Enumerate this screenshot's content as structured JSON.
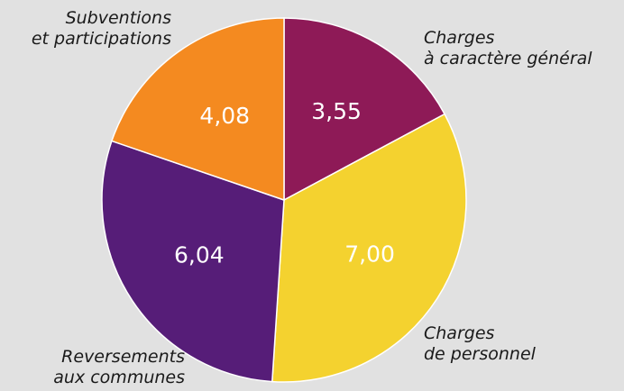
{
  "chart_data": {
    "type": "pie",
    "categories": [
      "Charges\nà caractère général",
      "Charges\nde personnel",
      "Reversements\naux communes",
      "Subventions\net participations"
    ],
    "values": [
      3.55,
      7.0,
      6.04,
      4.08
    ],
    "value_labels": [
      "3,55",
      "7,00",
      "6,04",
      "4,08"
    ],
    "colors": [
      "#8e1a57",
      "#f4d22f",
      "#561d78",
      "#f48a20"
    ]
  }
}
